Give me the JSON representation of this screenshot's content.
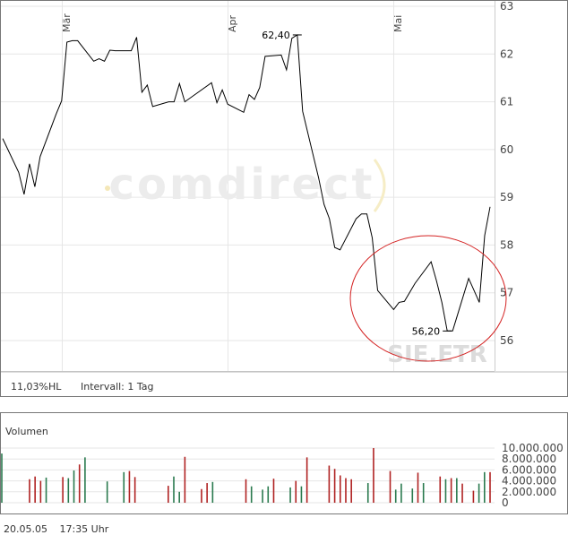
{
  "price_chart": {
    "chart_data": {
      "type": "line",
      "series": [
        {
          "x": [
            "2005-02-18",
            "2005-02-21",
            "2005-02-22",
            "2005-02-23",
            "2005-02-24",
            "2005-02-25",
            "2005-02-28",
            "2005-03-01",
            "2005-03-02",
            "2005-03-03",
            "2005-03-04",
            "2005-03-07",
            "2005-03-08",
            "2005-03-09",
            "2005-03-10",
            "2005-03-11",
            "2005-03-14",
            "2005-03-15",
            "2005-03-16",
            "2005-03-17",
            "2005-03-18",
            "2005-03-21",
            "2005-03-22",
            "2005-03-23",
            "2005-03-24",
            "2005-03-29",
            "2005-03-30",
            "2005-03-31",
            "2005-04-01",
            "2005-04-04",
            "2005-04-05",
            "2005-04-06",
            "2005-04-07",
            "2005-04-08",
            "2005-04-11",
            "2005-04-12",
            "2005-04-13",
            "2005-04-14",
            "2005-04-15",
            "2005-04-18",
            "2005-04-19",
            "2005-04-20",
            "2005-04-21",
            "2005-04-22",
            "2005-04-25",
            "2005-04-26",
            "2005-04-27",
            "2005-04-28",
            "2005-04-29",
            "2005-05-02",
            "2005-05-03",
            "2005-05-04",
            "2005-05-06",
            "2005-05-09",
            "2005-05-10",
            "2005-05-11",
            "2005-05-12",
            "2005-05-13",
            "2005-05-16",
            "2005-05-17",
            "2005-05-18",
            "2005-05-19",
            "2005-05-20"
          ],
          "y": [
            60.23,
            59.52,
            59.06,
            59.7,
            59.22,
            59.85,
            60.75,
            61.02,
            62.25,
            62.28,
            62.28,
            61.85,
            61.9,
            61.85,
            62.08,
            62.07,
            62.07,
            62.35,
            61.2,
            61.35,
            60.9,
            61.0,
            61.0,
            61.38,
            61.0,
            61.4,
            60.98,
            61.25,
            60.95,
            60.78,
            61.15,
            61.05,
            61.3,
            61.95,
            61.98,
            61.67,
            62.33,
            62.4,
            60.8,
            59.4,
            58.85,
            58.55,
            57.95,
            57.9,
            58.55,
            58.65,
            58.65,
            58.15,
            57.05,
            56.65,
            56.8,
            56.82,
            57.2,
            57.65,
            57.25,
            56.8,
            56.2,
            56.2,
            57.3,
            57.05,
            56.8,
            58.2,
            58.8
          ]
        }
      ],
      "ylim": [
        55.3,
        63
      ],
      "yticks": [
        "56",
        "57",
        "58",
        "59",
        "60",
        "61",
        "62",
        "63"
      ],
      "month_labels": [
        "Mär",
        "Apr",
        "Mai"
      ],
      "annotations": [
        {
          "label": "62,40",
          "x": "2005-04-14",
          "y": 62.4
        },
        {
          "label": "56,20",
          "x": "2005-05-12",
          "y": 56.2
        }
      ],
      "watermark": "comdirect",
      "symbol_watermark": "SIE.ETR"
    },
    "info_change": "11,03%HL",
    "info_interval": "Intervall: 1 Tag"
  },
  "volume_chart": {
    "title": "Volumen",
    "chart_data": {
      "type": "bar",
      "values": [
        9.0,
        0.0,
        0.0,
        0.0,
        0.0,
        4.3,
        4.8,
        4.0,
        4.6,
        0.0,
        0.0,
        4.7,
        4.5,
        5.9,
        7.0,
        8.3,
        0.0,
        0.0,
        0.0,
        3.9,
        0.0,
        0.0,
        5.6,
        5.8,
        4.7,
        0.0,
        0.0,
        0.0,
        0.0,
        0.0,
        3.1,
        4.8,
        2.0,
        8.4,
        0.0,
        0.0,
        2.5,
        3.6,
        3.8,
        0.0,
        0.0,
        0.0,
        0.0,
        0.0,
        4.3,
        3.0,
        0.0,
        2.4,
        3.0,
        4.4,
        0.0,
        0.0,
        2.8,
        4.0,
        3.0,
        8.3,
        0.0,
        0.0,
        0.0,
        6.8,
        6.2,
        5.0,
        4.5,
        4.3,
        0.0,
        0.0,
        3.6,
        10.0,
        0.0,
        0.0,
        5.8,
        2.4,
        3.5,
        0.0,
        2.6,
        5.5,
        3.6,
        0.0,
        0.0,
        4.8,
        4.3,
        4.5,
        4.5,
        3.5,
        0.0,
        2.2,
        3.5,
        5.6,
        5.6
      ],
      "colors": [
        "#2a7a4e",
        "",
        "",
        "",
        "",
        "#b02222",
        "#b02222",
        "#b02222",
        "#2a7a4e",
        "",
        "",
        "#b02222",
        "#2a7a4e",
        "#2a7a4e",
        "#b02222",
        "#2a7a4e",
        "",
        "",
        "",
        "#2a7a4e",
        "",
        "",
        "#2a7a4e",
        "#b02222",
        "#b02222",
        "",
        "",
        "",
        "",
        "",
        "#b02222",
        "#2a7a4e",
        "#2a7a4e",
        "#b02222",
        "",
        "",
        "#b02222",
        "#b02222",
        "#2a7a4e",
        "",
        "",
        "",
        "",
        "",
        "#b02222",
        "#2a7a4e",
        "",
        "#2a7a4e",
        "#2a7a4e",
        "#b02222",
        "",
        "",
        "#2a7a4e",
        "#b02222",
        "#2a7a4e",
        "#b02222",
        "",
        "",
        "",
        "#b02222",
        "#b02222",
        "#b02222",
        "#b02222",
        "#b02222",
        "",
        "",
        "#2a7a4e",
        "#b02222",
        "",
        "",
        "#b02222",
        "#2a7a4e",
        "#2a7a4e",
        "",
        "#2a7a4e",
        "#b02222",
        "#2a7a4e",
        "",
        "",
        "#b02222",
        "#2a7a4e",
        "#b02222",
        "#2a7a4e",
        "#b02222",
        "",
        "#b02222",
        "#2a7a4e",
        "#2a7a4e",
        "#b02222"
      ],
      "unit_millions": true,
      "ylim": [
        0,
        10
      ],
      "yticks": [
        "0",
        "2.000.000",
        "4.000.000",
        "6.000.000",
        "8.000.000",
        "10.000.000"
      ]
    }
  },
  "footer": {
    "date": "20.05.05",
    "time": "17:35 Uhr"
  }
}
